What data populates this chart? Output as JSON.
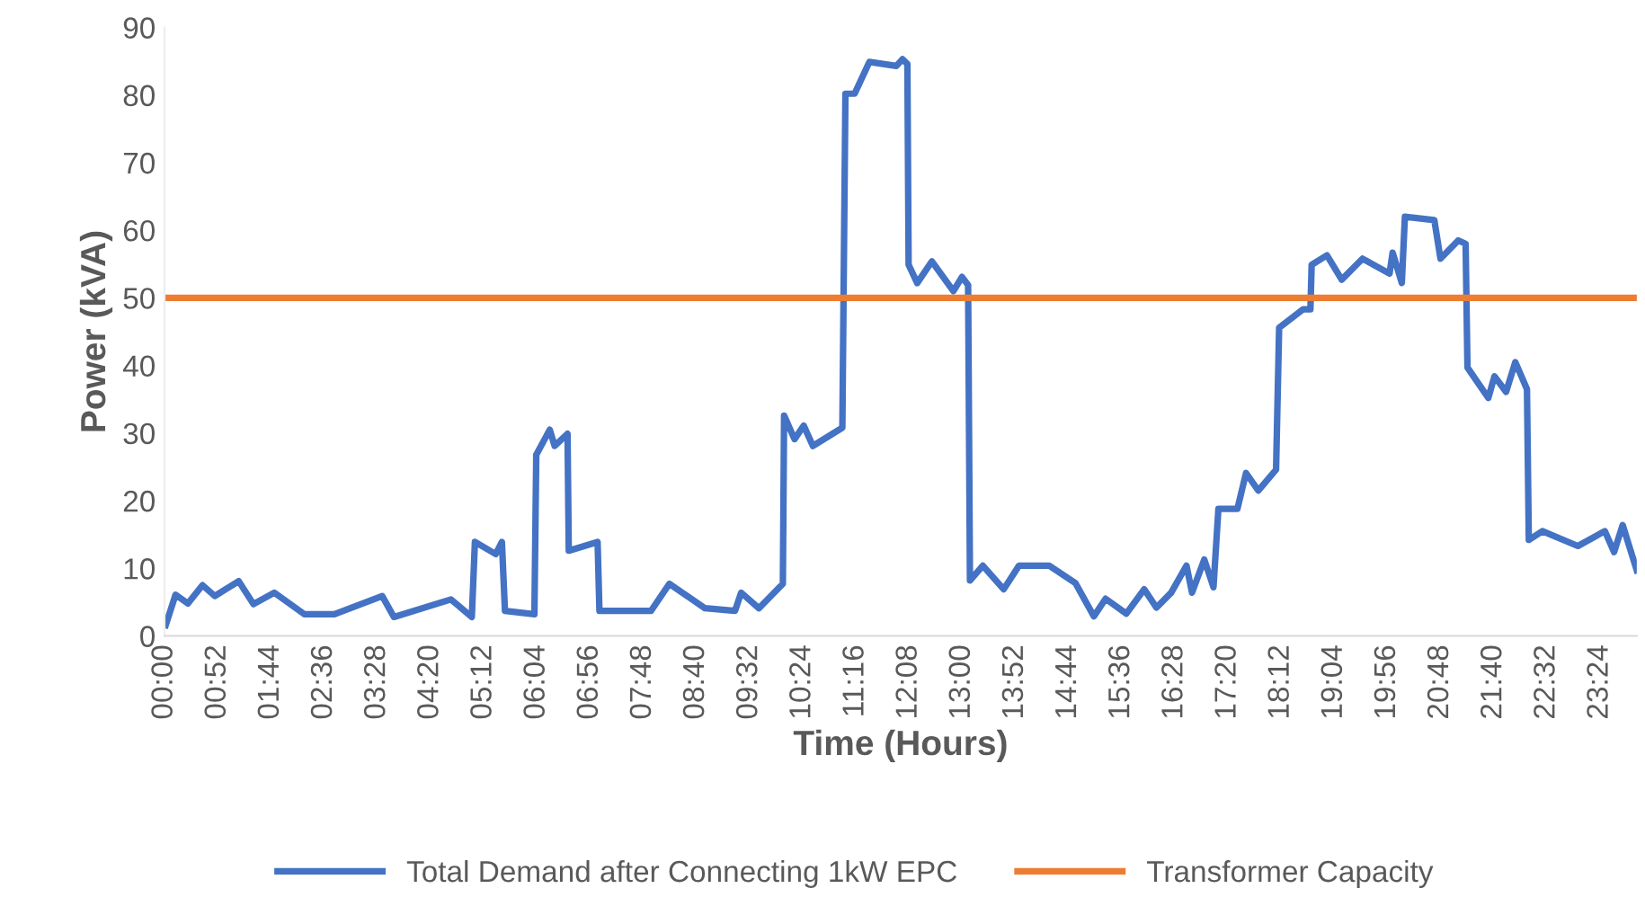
{
  "chart_data": {
    "type": "line",
    "xlabel": "Time (Hours)",
    "ylabel": "Power (kVA)",
    "xlim": [
      0,
      24
    ],
    "ylim": [
      0,
      90
    ],
    "yticks": [
      0,
      10,
      20,
      30,
      40,
      50,
      60,
      70,
      80,
      90
    ],
    "xticks": [
      {
        "value": 0,
        "label": "00:00"
      },
      {
        "value": 0.8667,
        "label": "00:52"
      },
      {
        "value": 1.7333,
        "label": "01:44"
      },
      {
        "value": 2.6,
        "label": "02:36"
      },
      {
        "value": 3.4667,
        "label": "03:28"
      },
      {
        "value": 4.3333,
        "label": "04:20"
      },
      {
        "value": 5.2,
        "label": "05:12"
      },
      {
        "value": 6.0667,
        "label": "06:04"
      },
      {
        "value": 6.9333,
        "label": "06:56"
      },
      {
        "value": 7.8,
        "label": "07:48"
      },
      {
        "value": 8.6667,
        "label": "08:40"
      },
      {
        "value": 9.5333,
        "label": "09:32"
      },
      {
        "value": 10.4,
        "label": "10:24"
      },
      {
        "value": 11.2667,
        "label": "11:16"
      },
      {
        "value": 12.1333,
        "label": "12:08"
      },
      {
        "value": 13.0,
        "label": "13:00"
      },
      {
        "value": 13.8667,
        "label": "13:52"
      },
      {
        "value": 14.7333,
        "label": "14:44"
      },
      {
        "value": 15.6,
        "label": "15:36"
      },
      {
        "value": 16.4667,
        "label": "16:28"
      },
      {
        "value": 17.3333,
        "label": "17:20"
      },
      {
        "value": 18.2,
        "label": "18:12"
      },
      {
        "value": 19.0667,
        "label": "19:04"
      },
      {
        "value": 19.9333,
        "label": "19:56"
      },
      {
        "value": 20.8,
        "label": "20:48"
      },
      {
        "value": 21.6667,
        "label": "21:40"
      },
      {
        "value": 22.5333,
        "label": "22:32"
      },
      {
        "value": 23.4,
        "label": "23:24"
      }
    ],
    "grid": false,
    "legend": "bottom",
    "marker": "none",
    "line_style": "solid",
    "series": [
      {
        "name": "Total Demand after Connecting 1kW EPC",
        "color": "#4472c4",
        "x": [
          0.02,
          0.18,
          0.38,
          0.62,
          0.82,
          1.21,
          1.45,
          1.79,
          2.28,
          2.77,
          3.55,
          3.74,
          4.67,
          5.01,
          5.06,
          5.4,
          5.5,
          5.55,
          6.03,
          6.06,
          6.28,
          6.36,
          6.57,
          6.59,
          7.06,
          7.09,
          7.35,
          7.93,
          8.23,
          8.81,
          9.3,
          9.4,
          9.69,
          10.08,
          10.1,
          10.27,
          10.42,
          10.57,
          11.05,
          11.1,
          11.25,
          11.49,
          11.93,
          12.03,
          12.11,
          12.13,
          12.27,
          12.51,
          12.86,
          13.0,
          13.1,
          13.13,
          13.34,
          13.68,
          13.93,
          14.42,
          14.85,
          15.15,
          15.34,
          15.68,
          15.97,
          16.17,
          16.41,
          16.66,
          16.75,
          16.95,
          17.1,
          17.18,
          17.49,
          17.63,
          17.83,
          18.12,
          18.17,
          18.56,
          18.68,
          18.7,
          18.95,
          19.19,
          19.53,
          19.97,
          20.02,
          20.17,
          20.22,
          20.7,
          20.8,
          21.09,
          21.21,
          21.24,
          21.58,
          21.68,
          21.87,
          22.02,
          22.21,
          22.24,
          22.46,
          23.04,
          23.48,
          23.63,
          23.77,
          24.0
        ],
        "values": [
          1.6,
          6.1,
          4.8,
          7.5,
          5.9,
          8.1,
          4.7,
          6.4,
          3.2,
          3.2,
          5.9,
          2.8,
          5.4,
          2.8,
          13.9,
          12.1,
          13.9,
          3.7,
          3.2,
          26.8,
          30.5,
          28.1,
          29.9,
          12.6,
          13.9,
          3.7,
          3.7,
          3.7,
          7.7,
          4.1,
          3.7,
          6.4,
          4.1,
          7.7,
          32.6,
          29.1,
          31.1,
          28.1,
          30.8,
          80.2,
          80.2,
          84.9,
          84.3,
          85.3,
          84.6,
          54.9,
          52.2,
          55.4,
          51.0,
          53.1,
          51.9,
          8.2,
          10.4,
          6.9,
          10.4,
          10.4,
          7.8,
          2.9,
          5.5,
          3.3,
          6.9,
          4.2,
          6.4,
          10.4,
          6.4,
          11.3,
          7.2,
          18.8,
          18.8,
          24.1,
          21.5,
          24.6,
          45.6,
          48.3,
          48.3,
          54.9,
          56.3,
          52.7,
          55.8,
          53.6,
          56.7,
          52.2,
          62.0,
          61.5,
          55.8,
          58.5,
          58.0,
          39.7,
          35.2,
          38.4,
          36.1,
          40.5,
          36.5,
          14.2,
          15.5,
          13.3,
          15.5,
          12.4,
          16.4,
          9.7
        ]
      },
      {
        "name": "Transformer Capacity",
        "color": "#ed7d31",
        "x": [
          0,
          24
        ],
        "values": [
          50,
          50
        ]
      }
    ]
  }
}
